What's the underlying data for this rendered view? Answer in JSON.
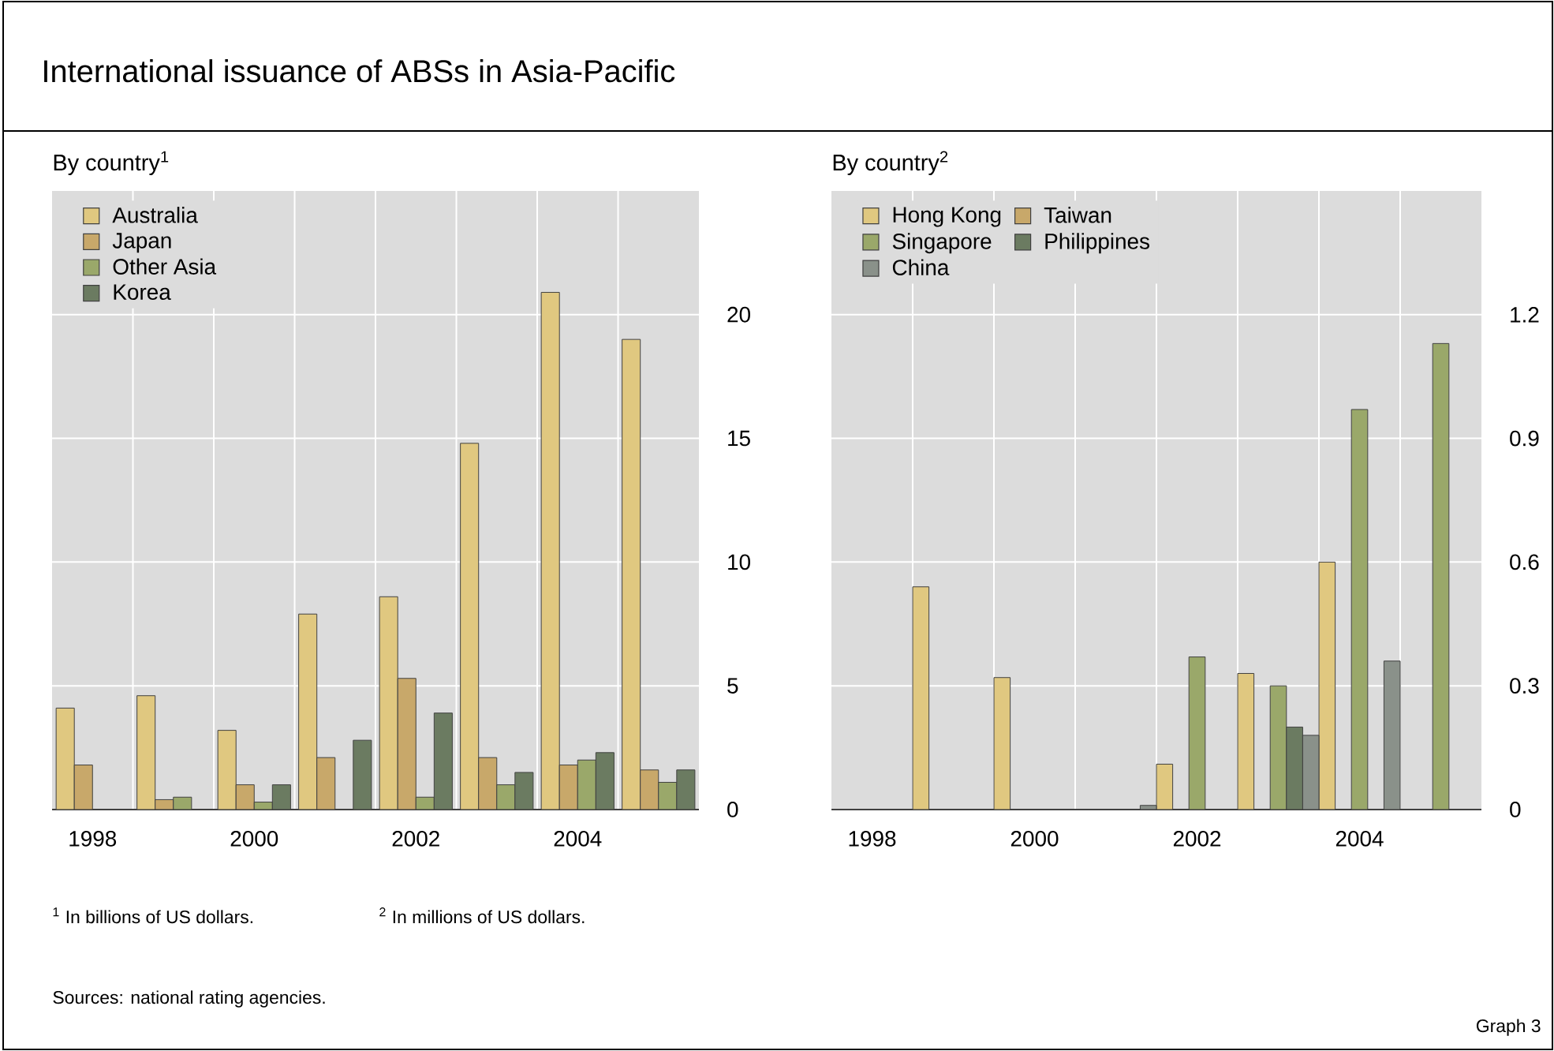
{
  "chart_data": [
    {
      "type": "bar",
      "title": "International issuance of ABSs in Asia-Pacific",
      "subtitle": "By country$^{1}$",
      "categories": [
        "1998",
        null,
        "2000",
        null,
        "2002",
        null,
        "2004",
        null
      ],
      "series": [
        {
          "name": "Australia",
          "color": "#e0c880",
          "values": [
            4.1,
            4.6,
            3.2,
            7.9,
            8.6,
            14.8,
            20.9,
            19.0
          ]
        },
        {
          "name": "Japan",
          "color": "#c8a86a",
          "values": [
            1.8,
            0.4,
            1.0,
            2.1,
            5.3,
            2.1,
            1.8,
            1.6
          ]
        },
        {
          "name": "Other Asia",
          "color": "#9aa86a",
          "values": [
            null,
            0.5,
            0.3,
            null,
            0.5,
            1.0,
            2.0,
            1.1
          ]
        },
        {
          "name": "Korea",
          "color": "#6b7b61",
          "values": [
            null,
            null,
            1.0,
            2.8,
            3.9,
            1.5,
            2.3,
            1.6
          ]
        }
      ],
      "ylim": [
        0,
        25
      ],
      "yticks": [
        0,
        5,
        10,
        15,
        20
      ],
      "grid": true,
      "legend": "top left",
      "annotations": [
        "$^{1}$  In billions of US dollars.",
        "Sources: national rating agencies.",
        "Graph 3"
      ]
    },
    {
      "type": "bar",
      "subtitle": "By country$^{2}$",
      "categories": [
        "1998",
        null,
        "2000",
        null,
        "2002",
        null,
        "2004",
        null
      ],
      "series": [
        {
          "name": "Hong Kong",
          "color": "#e0c880",
          "values": [
            null,
            0.54,
            0.32,
            null,
            0.11,
            0.33,
            0.6,
            null
          ]
        },
        {
          "name": "Taiwan",
          "color": "#c8a86a",
          "values": [
            null,
            null,
            null,
            null,
            null,
            null,
            null,
            null
          ]
        },
        {
          "name": "Singapore",
          "color": "#9aa86a",
          "values": [
            null,
            null,
            null,
            null,
            0.37,
            0.3,
            0.97,
            1.13
          ]
        },
        {
          "name": "Philippines",
          "color": "#6b7b61",
          "values": [
            null,
            null,
            null,
            null,
            null,
            0.2,
            null,
            null
          ]
        },
        {
          "name": "China",
          "color": "#8a918a",
          "values": [
            null,
            null,
            null,
            0.01,
            null,
            0.18,
            0.36,
            null
          ]
        }
      ],
      "ylim": [
        0,
        1.5
      ],
      "yticks": [
        0,
        0.3,
        0.6,
        0.9,
        1.2
      ],
      "grid": true,
      "legend": "top left",
      "annotations": [
        "$^{2}$  In millions of US dollars."
      ]
    }
  ]
}
